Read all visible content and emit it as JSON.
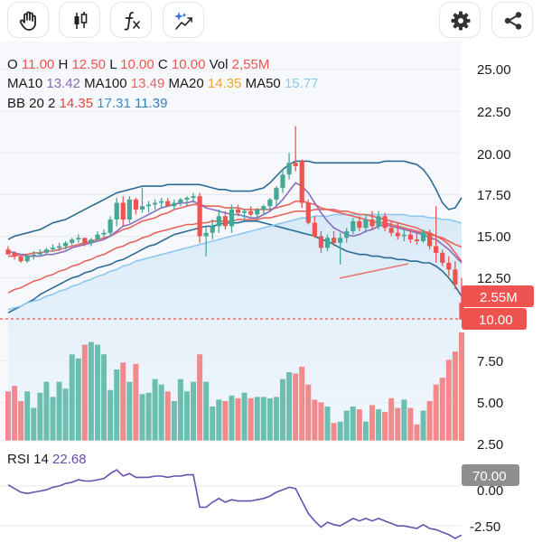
{
  "toolbar": {
    "buttons": [
      {
        "id": "draw",
        "icon": "hand-icon"
      },
      {
        "id": "candles",
        "icon": "candlestick-icon"
      },
      {
        "id": "indicators",
        "icon": "function-icon"
      },
      {
        "id": "ai",
        "icon": "sparkle-trend-icon"
      },
      {
        "id": "settings",
        "icon": "gear-icon"
      },
      {
        "id": "share",
        "icon": "share-icon"
      }
    ]
  },
  "legend": {
    "ohlc": [
      {
        "key": "O",
        "value": "11.00"
      },
      {
        "key": "H",
        "value": "12.50"
      },
      {
        "key": "L",
        "value": "10.00"
      },
      {
        "key": "C",
        "value": "10.00"
      },
      {
        "key": "Vol",
        "value": "2,55M"
      }
    ],
    "ma": [
      {
        "key": "MA10",
        "value": "13.42",
        "color": "#8c6bbd"
      },
      {
        "key": "MA100",
        "value": "13.49",
        "color": "#e8635c"
      },
      {
        "key": "MA20",
        "value": "14.35",
        "color": "#f0a52b"
      },
      {
        "key": "MA50",
        "value": "15.77",
        "color": "#8dc8ef"
      }
    ],
    "bb": {
      "label": "BB 20 2",
      "values": [
        "14.35",
        "17.31",
        "11.39"
      ],
      "colors": [
        "#e8453c",
        "#3c8fd6",
        "#2a7fc0"
      ]
    }
  },
  "price_axis": {
    "labels": [
      "25.00",
      "22.50",
      "20.00",
      "17.50",
      "15.00",
      "12.50",
      "7.50",
      "5.00",
      "2.50"
    ],
    "volume_tag": "2.55M",
    "last_price_tag": "10.00"
  },
  "rsi": {
    "label": "RSI 14",
    "value": "22.68",
    "axis_labels": [
      "70.00",
      "0.00",
      "-2.50"
    ]
  },
  "colors": {
    "up": "#45a897",
    "down": "#ef5350",
    "up_volume": "#6cbfb0",
    "down_volume": "#f2898a",
    "bb": "#2a6c93",
    "rsi": "#6a4fb0",
    "last_price": "#ef5350"
  },
  "chart_data": {
    "type": "candlestick",
    "y_range": [
      2.5,
      25.0
    ],
    "candles": [
      [
        14.2,
        14.4,
        13.9,
        13.9
      ],
      [
        14.0,
        14.1,
        13.6,
        13.8
      ],
      [
        13.8,
        13.9,
        13.4,
        13.5
      ],
      [
        13.5,
        13.9,
        13.4,
        13.8
      ],
      [
        13.8,
        14.1,
        13.6,
        13.9
      ],
      [
        13.9,
        14.2,
        13.8,
        14.0
      ],
      [
        14.0,
        14.3,
        13.9,
        14.2
      ],
      [
        14.2,
        14.5,
        14.1,
        14.3
      ],
      [
        14.3,
        14.6,
        14.1,
        14.4
      ],
      [
        14.4,
        14.7,
        14.2,
        14.6
      ],
      [
        14.6,
        14.9,
        14.4,
        14.8
      ],
      [
        14.8,
        15.1,
        14.6,
        14.9
      ],
      [
        14.9,
        14.9,
        14.4,
        14.6
      ],
      [
        14.6,
        14.9,
        14.4,
        14.8
      ],
      [
        14.8,
        15.3,
        14.7,
        15.1
      ],
      [
        15.1,
        15.4,
        14.9,
        15.2
      ],
      [
        15.2,
        16.2,
        15.0,
        16.0
      ],
      [
        16.0,
        17.3,
        15.6,
        17.0
      ],
      [
        17.0,
        17.4,
        15.6,
        16.0
      ],
      [
        16.0,
        17.4,
        15.8,
        17.2
      ],
      [
        17.2,
        17.3,
        16.3,
        16.6
      ],
      [
        16.6,
        17.9,
        16.4,
        16.8
      ],
      [
        16.8,
        17.1,
        16.4,
        16.9
      ],
      [
        16.9,
        17.2,
        16.6,
        17.0
      ],
      [
        17.0,
        17.3,
        16.7,
        17.1
      ],
      [
        17.1,
        17.3,
        16.8,
        16.8
      ],
      [
        16.8,
        17.2,
        16.6,
        17.0
      ],
      [
        17.0,
        17.3,
        16.8,
        17.2
      ],
      [
        17.2,
        17.4,
        16.8,
        17.3
      ],
      [
        17.3,
        17.6,
        17.0,
        17.4
      ],
      [
        17.4,
        17.6,
        14.6,
        15.0
      ],
      [
        15.0,
        15.6,
        13.8,
        15.2
      ],
      [
        15.2,
        16.0,
        14.8,
        15.6
      ],
      [
        15.6,
        16.6,
        15.2,
        16.2
      ],
      [
        16.2,
        16.5,
        15.4,
        15.6
      ],
      [
        15.6,
        16.9,
        15.2,
        16.6
      ],
      [
        16.6,
        16.9,
        16.2,
        16.4
      ],
      [
        16.4,
        16.6,
        16.0,
        16.5
      ],
      [
        16.5,
        16.8,
        16.2,
        16.3
      ],
      [
        16.3,
        16.7,
        16.0,
        16.6
      ],
      [
        16.6,
        16.9,
        16.3,
        16.8
      ],
      [
        16.8,
        17.3,
        16.5,
        17.2
      ],
      [
        17.2,
        18.0,
        16.8,
        17.9
      ],
      [
        17.9,
        19.0,
        17.6,
        18.7
      ],
      [
        18.7,
        20.0,
        18.4,
        19.4
      ],
      [
        19.4,
        21.6,
        18.9,
        19.2
      ],
      [
        19.5,
        19.6,
        16.7,
        17.0
      ],
      [
        17.0,
        17.2,
        15.7,
        15.8
      ],
      [
        15.8,
        16.2,
        14.9,
        15.0
      ],
      [
        15.0,
        15.3,
        14.0,
        14.3
      ],
      [
        14.3,
        15.1,
        14.1,
        14.9
      ],
      [
        14.9,
        15.3,
        14.4,
        14.6
      ],
      [
        14.6,
        15.2,
        13.3,
        14.9
      ],
      [
        14.9,
        15.5,
        14.6,
        15.3
      ],
      [
        15.3,
        16.1,
        15.1,
        15.9
      ],
      [
        15.9,
        16.2,
        15.3,
        15.5
      ],
      [
        15.5,
        16.3,
        15.2,
        16.0
      ],
      [
        16.0,
        16.5,
        15.4,
        15.6
      ],
      [
        15.6,
        16.5,
        15.4,
        16.2
      ],
      [
        16.2,
        16.4,
        15.3,
        15.5
      ],
      [
        15.5,
        15.9,
        15.0,
        15.2
      ],
      [
        15.2,
        15.8,
        14.8,
        15.0
      ],
      [
        15.0,
        15.5,
        14.7,
        15.1
      ],
      [
        15.1,
        15.4,
        14.6,
        14.8
      ],
      [
        14.8,
        15.3,
        14.5,
        14.7
      ],
      [
        14.7,
        15.4,
        14.6,
        15.2
      ],
      [
        15.2,
        15.4,
        14.2,
        14.4
      ],
      [
        14.4,
        16.8,
        13.4,
        14.0
      ],
      [
        14.0,
        14.2,
        13.2,
        13.4
      ],
      [
        13.4,
        13.8,
        12.6,
        13.0
      ],
      [
        13.0,
        13.5,
        11.8,
        12.1
      ],
      [
        11.0,
        12.5,
        10.0,
        10.0
      ]
    ],
    "volume": [
      3.6,
      4.0,
      2.9,
      3.6,
      2.4,
      3.5,
      4.3,
      3.2,
      4.3,
      3.8,
      6.3,
      6.0,
      7.0,
      7.2,
      7.0,
      6.3,
      3.7,
      5.2,
      5.7,
      4.3,
      5.6,
      3.4,
      3.5,
      4.5,
      4.1,
      3.6,
      2.9,
      4.5,
      3.6,
      4.3,
      6.3,
      4.3,
      2.5,
      3.0,
      2.9,
      3.3,
      3.1,
      3.5,
      3.1,
      3.2,
      3.2,
      3.1,
      3.2,
      4.5,
      5.0,
      4.9,
      5.4,
      4.1,
      3.0,
      2.8,
      2.5,
      1.3,
      1.4,
      2.2,
      2.5,
      2.3,
      1.4,
      2.6,
      2.3,
      2.1,
      3.1,
      2.4,
      3.0,
      2.4,
      1.2,
      2.2,
      2.9,
      4.1,
      4.6,
      5.9,
      6.5,
      7.9
    ],
    "ma10": [
      14.1,
      14.0,
      13.9,
      13.8,
      13.8,
      13.8,
      13.9,
      13.9,
      14.0,
      14.1,
      14.3,
      14.4,
      14.5,
      14.6,
      14.7,
      14.8,
      15.0,
      15.3,
      15.6,
      15.7,
      15.9,
      16.1,
      16.3,
      16.5,
      16.7,
      16.8,
      16.9,
      17.0,
      17.0,
      17.1,
      16.9,
      16.7,
      16.6,
      16.5,
      16.4,
      16.3,
      16.3,
      16.2,
      16.1,
      16.1,
      16.3,
      16.5,
      16.8,
      17.2,
      17.7,
      18.2,
      18.0,
      17.6,
      17.0,
      16.4,
      15.9,
      15.5,
      15.3,
      15.1,
      15.0,
      15.1,
      15.3,
      15.4,
      15.6,
      15.7,
      15.6,
      15.5,
      15.4,
      15.3,
      15.2,
      15.1,
      14.9,
      14.8,
      14.5,
      14.2,
      13.8,
      13.4
    ],
    "ma20": [
      13.8,
      13.8,
      13.9,
      13.9,
      14.0,
      14.0,
      14.1,
      14.1,
      14.2,
      14.3,
      14.4,
      14.5,
      14.6,
      14.7,
      14.8,
      14.9,
      15.0,
      15.2,
      15.4,
      15.5,
      15.7,
      15.9,
      16.0,
      16.1,
      16.3,
      16.4,
      16.6,
      16.7,
      16.8,
      16.9,
      16.9,
      16.8,
      16.8,
      16.8,
      16.7,
      16.7,
      16.7,
      16.6,
      16.6,
      16.6,
      16.6,
      16.6,
      16.7,
      16.8,
      16.9,
      17.1,
      17.1,
      17.0,
      16.9,
      16.7,
      16.6,
      16.5,
      16.4,
      16.3,
      16.2,
      16.1,
      16.0,
      15.9,
      15.8,
      15.8,
      15.7,
      15.6,
      15.5,
      15.4,
      15.3,
      15.2,
      15.1,
      15.0,
      14.9,
      14.7,
      14.5,
      14.35
    ],
    "ma50": [
      10.6,
      10.7,
      10.8,
      11.0,
      11.1,
      11.2,
      11.4,
      11.5,
      11.7,
      11.8,
      12.0,
      12.1,
      12.3,
      12.4,
      12.6,
      12.7,
      12.9,
      13.0,
      13.2,
      13.3,
      13.5,
      13.6,
      13.7,
      13.8,
      13.9,
      14.0,
      14.1,
      14.2,
      14.3,
      14.4,
      14.5,
      14.6,
      14.7,
      14.8,
      14.9,
      15.0,
      15.1,
      15.2,
      15.3,
      15.4,
      15.5,
      15.6,
      15.7,
      15.8,
      15.9,
      16.0,
      16.1,
      16.1,
      16.2,
      16.2,
      16.2,
      16.3,
      16.3,
      16.3,
      16.3,
      16.3,
      16.3,
      16.3,
      16.3,
      16.3,
      16.3,
      16.3,
      16.3,
      16.2,
      16.2,
      16.2,
      16.1,
      16.1,
      16.0,
      16.0,
      15.9,
      15.77
    ],
    "ma100": [
      11.6,
      11.8,
      11.9,
      12.1,
      12.3,
      12.4,
      12.6,
      12.7,
      12.9,
      13.0,
      13.2,
      13.3,
      13.5,
      13.6,
      13.8,
      13.9,
      14.1,
      14.3,
      14.4,
      14.6,
      14.7,
      14.9,
      15.0,
      15.2,
      15.3,
      15.4,
      15.5,
      15.6,
      15.7,
      15.7,
      15.8,
      15.8,
      15.9,
      15.9,
      15.9,
      15.9,
      16.0,
      16.0,
      16.0,
      16.0,
      16.1,
      16.1,
      16.2,
      16.3,
      16.4,
      16.5,
      16.5,
      16.5,
      16.6,
      16.6,
      16.6,
      16.6,
      16.5,
      16.5,
      16.4,
      16.3,
      16.3,
      16.2,
      16.1,
      16.0,
      15.9,
      15.8,
      15.7,
      15.6,
      15.5,
      15.3,
      15.2,
      15.0,
      14.8,
      14.5,
      14.0,
      13.49
    ],
    "bb_upper": [
      14.8,
      15.0,
      15.1,
      15.2,
      15.3,
      15.4,
      15.6,
      15.8,
      15.9,
      16.0,
      16.2,
      16.4,
      16.6,
      16.8,
      17.0,
      17.2,
      17.4,
      17.6,
      17.7,
      17.8,
      17.9,
      18.0,
      18.0,
      18.0,
      18.0,
      18.1,
      18.1,
      18.1,
      18.1,
      18.1,
      18.1,
      18.0,
      17.9,
      17.8,
      17.8,
      17.7,
      17.7,
      17.7,
      17.7,
      17.8,
      17.9,
      18.2,
      18.6,
      19.0,
      19.3,
      19.5,
      19.5,
      19.5,
      19.4,
      19.4,
      19.4,
      19.4,
      19.4,
      19.4,
      19.4,
      19.4,
      19.4,
      19.4,
      19.4,
      19.5,
      19.5,
      19.5,
      19.5,
      19.4,
      19.3,
      19.0,
      18.5,
      17.8,
      17.0,
      16.6,
      16.7,
      17.31
    ],
    "bb_lower": [
      10.4,
      10.6,
      10.8,
      11.0,
      11.2,
      11.5,
      11.7,
      11.9,
      12.1,
      12.3,
      12.5,
      12.6,
      12.8,
      12.9,
      13.1,
      13.2,
      13.3,
      13.5,
      13.6,
      13.8,
      14.0,
      14.2,
      14.4,
      14.5,
      14.7,
      14.9,
      15.1,
      15.2,
      15.3,
      15.4,
      15.5,
      15.6,
      15.6,
      15.7,
      15.8,
      15.8,
      15.8,
      15.9,
      15.9,
      15.9,
      15.8,
      15.7,
      15.6,
      15.5,
      15.4,
      15.3,
      15.2,
      15.1,
      15.0,
      14.8,
      14.7,
      14.5,
      14.3,
      14.1,
      14.0,
      13.9,
      13.9,
      13.8,
      13.8,
      13.7,
      13.7,
      13.6,
      13.6,
      13.5,
      13.5,
      13.4,
      13.4,
      13.2,
      12.9,
      12.5,
      12.0,
      11.39
    ],
    "trendline": [
      [
        376,
        308
      ],
      [
        452,
        292
      ]
    ],
    "rsi_values": [
      63,
      60,
      57,
      56,
      57,
      58,
      59,
      61,
      62,
      64,
      65,
      67,
      66,
      66,
      67,
      68,
      72,
      75,
      70,
      72,
      69,
      69,
      69,
      70,
      70,
      69,
      70,
      70,
      71,
      71,
      45,
      45,
      49,
      52,
      49,
      51,
      50,
      50,
      50,
      51,
      52,
      54,
      57,
      59,
      61,
      60,
      50,
      40,
      34,
      29,
      33,
      31,
      30,
      33,
      36,
      34,
      36,
      34,
      36,
      34,
      32,
      30,
      30,
      29,
      28,
      31,
      28,
      27,
      25,
      23,
      20,
      22.68
    ]
  }
}
